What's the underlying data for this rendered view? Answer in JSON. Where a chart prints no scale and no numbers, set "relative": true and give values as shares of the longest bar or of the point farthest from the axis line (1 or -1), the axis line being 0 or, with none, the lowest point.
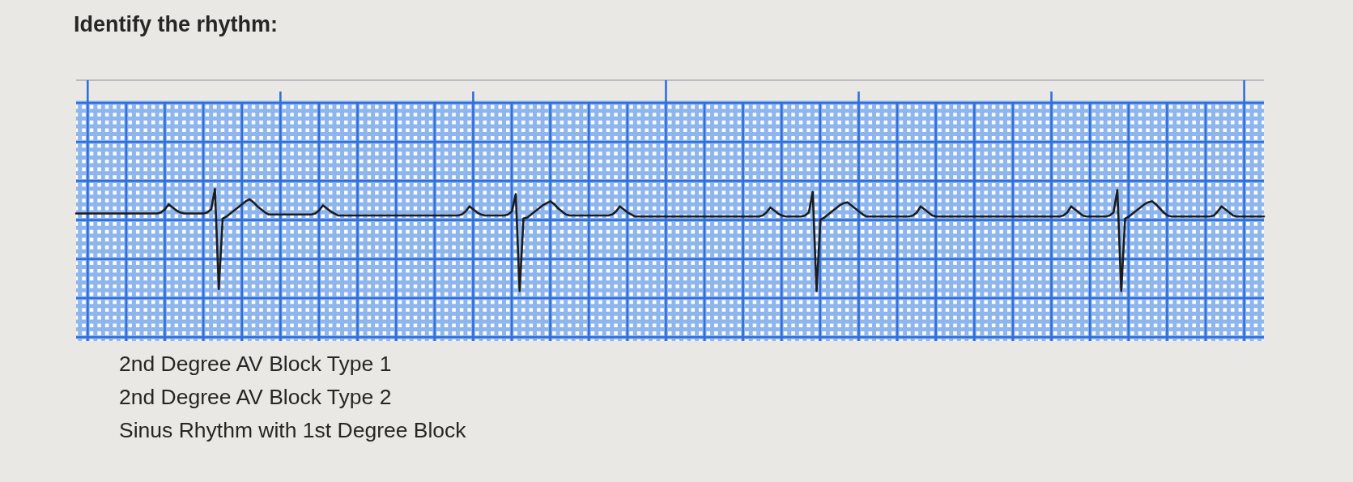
{
  "chart_data": {
    "type": "line",
    "title": "Identify the rhythm:",
    "annotations": [
      "2nd Degree AV Block Type 1",
      "2nd Degree AV Block Type 2",
      "Sinus Rhythm with 1st Degree Block"
    ],
    "relative": true,
    "grid": true,
    "tick_labels": false,
    "line_style": "solid",
    "categories": [
      null,
      null,
      null,
      null,
      null,
      null,
      null,
      null,
      null,
      null,
      null,
      null,
      null,
      null,
      null,
      null,
      null,
      null,
      null,
      null,
      null,
      null,
      null,
      null,
      null,
      null,
      null,
      null,
      null,
      null,
      null,
      null,
      null,
      null,
      null,
      null,
      null,
      null,
      null,
      null,
      null,
      null,
      null,
      null,
      null,
      null,
      null,
      null,
      null,
      null,
      null,
      null,
      null,
      null,
      null,
      null,
      null,
      null,
      null,
      null,
      null,
      null,
      null,
      null,
      null,
      null,
      null,
      null,
      null,
      null,
      null,
      null,
      null,
      null,
      null,
      null,
      null,
      null,
      null,
      null,
      null,
      null,
      null,
      null,
      null,
      null,
      null,
      null,
      null,
      null,
      null,
      null,
      null,
      null,
      null,
      null,
      null,
      null,
      null,
      null,
      null,
      null,
      null,
      null,
      null,
      null,
      null,
      null,
      null,
      null,
      null,
      null,
      null,
      null,
      null,
      null,
      null,
      null,
      null,
      null,
      null,
      null,
      null,
      null,
      null,
      null,
      null,
      null,
      null,
      null,
      null,
      null,
      null,
      null,
      null,
      null,
      null,
      null,
      null,
      null,
      null,
      null,
      null,
      null,
      null,
      null,
      null,
      null,
      null,
      null,
      null,
      null,
      null,
      null,
      null,
      null,
      null,
      null,
      null,
      null,
      null,
      null,
      null,
      null,
      null,
      null,
      null,
      null,
      null,
      null,
      null,
      null,
      null,
      null,
      null,
      null,
      null,
      null,
      null,
      null,
      null,
      null,
      null,
      null,
      null,
      null,
      null,
      null,
      null,
      null,
      null,
      null,
      null,
      null,
      null,
      null,
      null,
      null,
      null,
      null,
      null,
      null,
      null,
      null,
      null,
      null,
      null,
      null,
      null,
      null,
      null,
      null,
      null,
      null,
      null,
      null,
      null,
      null,
      null,
      null,
      null,
      null,
      null,
      null,
      null,
      null,
      null,
      null,
      null,
      null,
      null,
      null,
      null,
      null,
      null,
      null,
      null,
      null,
      null,
      null,
      null,
      null,
      null,
      null,
      null,
      null,
      null,
      null,
      null,
      null,
      null,
      null,
      null,
      null,
      null,
      null,
      null,
      null,
      null,
      null,
      null,
      null,
      null,
      null,
      null,
      null,
      null,
      null,
      null,
      null,
      null,
      null,
      null,
      null,
      null,
      null,
      null,
      null,
      null,
      null,
      null,
      null,
      null,
      null,
      null,
      null,
      null,
      null,
      null,
      null,
      null,
      null,
      null,
      null,
      null,
      null,
      null,
      null,
      null,
      null,
      null,
      null,
      null,
      null,
      null,
      null,
      null,
      null,
      null
    ],
    "series": [
      {
        "color": "#1c1c1c",
        "values": [
          0.76,
          0.76,
          0.76,
          0.76,
          0.76,
          0.76,
          0.76,
          0.76,
          0.76,
          0.76,
          0.76,
          0.76,
          0.76,
          0.76,
          0.76,
          0.76,
          0.76,
          0.76,
          0.76,
          0.76,
          0.76,
          0.76,
          0.77,
          0.8,
          0.85,
          0.82,
          0.79,
          0.77,
          0.76,
          0.76,
          0.76,
          0.76,
          0.76,
          0.76,
          0.77,
          0.8,
          1.0,
          0.02,
          0.71,
          0.73,
          0.76,
          0.79,
          0.82,
          0.85,
          0.88,
          0.9,
          0.87,
          0.83,
          0.8,
          0.77,
          0.75,
          0.75,
          0.75,
          0.75,
          0.75,
          0.75,
          0.75,
          0.75,
          0.75,
          0.75,
          0.75,
          0.75,
          0.76,
          0.79,
          0.84,
          0.81,
          0.78,
          0.76,
          0.74,
          0.74,
          0.74,
          0.74,
          0.74,
          0.74,
          0.74,
          0.74,
          0.74,
          0.74,
          0.74,
          0.74,
          0.74,
          0.74,
          0.74,
          0.74,
          0.74,
          0.74,
          0.74,
          0.74,
          0.74,
          0.74,
          0.74,
          0.74,
          0.74,
          0.74,
          0.74,
          0.74,
          0.74,
          0.74,
          0.74,
          0.74,
          0.75,
          0.78,
          0.83,
          0.8,
          0.77,
          0.75,
          0.74,
          0.74,
          0.74,
          0.74,
          0.74,
          0.74,
          0.75,
          0.78,
          0.95,
          0.0,
          0.71,
          0.72,
          0.75,
          0.78,
          0.81,
          0.84,
          0.86,
          0.88,
          0.85,
          0.81,
          0.78,
          0.75,
          0.74,
          0.74,
          0.74,
          0.74,
          0.74,
          0.74,
          0.74,
          0.74,
          0.74,
          0.74,
          0.74,
          0.75,
          0.78,
          0.83,
          0.8,
          0.77,
          0.75,
          0.73,
          0.73,
          0.73,
          0.73,
          0.73,
          0.73,
          0.73,
          0.73,
          0.73,
          0.73,
          0.73,
          0.73,
          0.73,
          0.73,
          0.73,
          0.73,
          0.73,
          0.73,
          0.73,
          0.73,
          0.73,
          0.73,
          0.73,
          0.73,
          0.73,
          0.73,
          0.73,
          0.73,
          0.73,
          0.73,
          0.73,
          0.73,
          0.73,
          0.74,
          0.77,
          0.82,
          0.79,
          0.76,
          0.74,
          0.73,
          0.73,
          0.73,
          0.73,
          0.73,
          0.74,
          0.77,
          0.97,
          0.0,
          0.7,
          0.72,
          0.75,
          0.78,
          0.81,
          0.84,
          0.86,
          0.87,
          0.84,
          0.81,
          0.78,
          0.75,
          0.73,
          0.73,
          0.73,
          0.73,
          0.73,
          0.73,
          0.73,
          0.73,
          0.73,
          0.73,
          0.73,
          0.73,
          0.74,
          0.77,
          0.83,
          0.8,
          0.77,
          0.74,
          0.73,
          0.73,
          0.73,
          0.73,
          0.73,
          0.73,
          0.73,
          0.73,
          0.73,
          0.73,
          0.73,
          0.73,
          0.73,
          0.73,
          0.73,
          0.73,
          0.73,
          0.73,
          0.73,
          0.73,
          0.73,
          0.73,
          0.73,
          0.73,
          0.73,
          0.73,
          0.73,
          0.73,
          0.73,
          0.73,
          0.73,
          0.73,
          0.73,
          0.74,
          0.77,
          0.83,
          0.8,
          0.77,
          0.74,
          0.73,
          0.73,
          0.73,
          0.73,
          0.73,
          0.73,
          0.74,
          0.77,
          0.99,
          0.0,
          0.71,
          0.73,
          0.76,
          0.79,
          0.82,
          0.85,
          0.87,
          0.88,
          0.85,
          0.81,
          0.77,
          0.74,
          0.73,
          0.73,
          0.73,
          0.73,
          0.73,
          0.73,
          0.73,
          0.73,
          0.73,
          0.73,
          0.73,
          0.74,
          0.78,
          0.83,
          0.8,
          0.77,
          0.74,
          0.73,
          0.73,
          0.73,
          0.73,
          0.73,
          0.73,
          0.73,
          0.73
        ]
      }
    ]
  }
}
